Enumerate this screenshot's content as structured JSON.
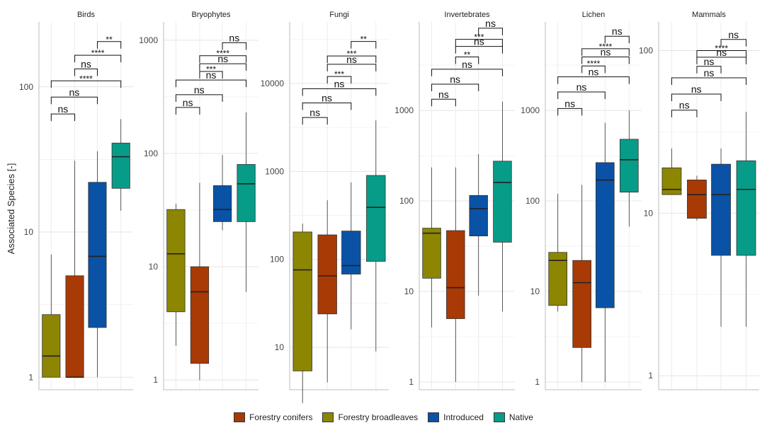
{
  "chart_data": {
    "type": "box",
    "ylabel": "Associated Species [-]",
    "y_scale": "log10",
    "grid": true,
    "legend_placement": "bottom",
    "groups": [
      "Forestry conifers",
      "Forestry broadleaves",
      "Introduced",
      "Native"
    ],
    "group_order_in_panel": [
      "Forestry broadleaves",
      "Forestry conifers",
      "Introduced",
      "Native"
    ],
    "colors": {
      "Forestry conifers": "#a83a06",
      "Forestry broadleaves": "#8c8603",
      "Introduced": "#0a52a5",
      "Native": "#079c87"
    },
    "panels": [
      {
        "title": "Birds",
        "ylim": [
          0.82,
          280
        ],
        "ticks": [
          1,
          10,
          100
        ],
        "boxes": [
          {
            "group": "Forestry broadleaves",
            "min": 1,
            "q1": 1,
            "median": 1.4,
            "q3": 2.7,
            "max": 7
          },
          {
            "group": "Forestry conifers",
            "min": 1,
            "q1": 1,
            "median": 1,
            "q3": 5,
            "max": 31
          },
          {
            "group": "Introduced",
            "min": 1,
            "q1": 2.2,
            "median": 6.8,
            "q3": 22,
            "max": 36
          },
          {
            "group": "Native",
            "min": 14,
            "q1": 20,
            "median": 33,
            "q3": 41,
            "max": 60
          }
        ],
        "brackets": [
          {
            "from": 0,
            "to": 1,
            "label": "ns",
            "y": 65
          },
          {
            "from": 0,
            "to": 2,
            "label": "ns",
            "y": 85
          },
          {
            "from": 0,
            "to": 3,
            "label": "****",
            "y": 110
          },
          {
            "from": 1,
            "to": 2,
            "label": "ns",
            "y": 133
          },
          {
            "from": 1,
            "to": 3,
            "label": "****",
            "y": 165
          },
          {
            "from": 2,
            "to": 3,
            "label": "**",
            "y": 205
          }
        ]
      },
      {
        "title": "Bryophytes",
        "ylim": [
          0.82,
          1450
        ],
        "ticks": [
          1,
          10,
          100,
          1000
        ],
        "boxes": [
          {
            "group": "Forestry broadleaves",
            "min": 2,
            "q1": 4,
            "median": 13,
            "q3": 32,
            "max": 36
          },
          {
            "group": "Forestry conifers",
            "min": 1,
            "q1": 1.4,
            "median": 6,
            "q3": 10,
            "max": 55
          },
          {
            "group": "Introduced",
            "min": 21,
            "q1": 25,
            "median": 32,
            "q3": 52,
            "max": 97
          },
          {
            "group": "Native",
            "min": 6,
            "q1": 25,
            "median": 54,
            "q3": 80,
            "max": 230
          }
        ],
        "brackets": [
          {
            "from": 0,
            "to": 1,
            "label": "ns",
            "y": 255
          },
          {
            "from": 0,
            "to": 2,
            "label": "ns",
            "y": 330
          },
          {
            "from": 0,
            "to": 3,
            "label": "ns",
            "y": 445
          },
          {
            "from": 1,
            "to": 2,
            "label": "***",
            "y": 530
          },
          {
            "from": 1,
            "to": 3,
            "label": "ns",
            "y": 620
          },
          {
            "from": 1,
            "to": 3,
            "label": "****",
            "y": 730
          },
          {
            "from": 2,
            "to": 3,
            "label": "ns",
            "y": 950
          }
        ]
      },
      {
        "title": "Fungi",
        "ylim": [
          3.3,
          50000
        ],
        "ticks": [
          10,
          100,
          1000,
          10000
        ],
        "boxes": [
          {
            "group": "Forestry broadleaves",
            "min": 2,
            "q1": 5.4,
            "median": 76,
            "q3": 205,
            "max": 255
          },
          {
            "group": "Forestry conifers",
            "min": 4,
            "q1": 24,
            "median": 65,
            "q3": 190,
            "max": 470
          },
          {
            "group": "Introduced",
            "min": 16,
            "q1": 68,
            "median": 85,
            "q3": 210,
            "max": 750
          },
          {
            "group": "Native",
            "min": 9,
            "q1": 95,
            "median": 390,
            "q3": 900,
            "max": 3800
          }
        ],
        "brackets": [
          {
            "from": 0,
            "to": 1,
            "label": "ns",
            "y": 4100
          },
          {
            "from": 0,
            "to": 2,
            "label": "ns",
            "y": 6000
          },
          {
            "from": 0,
            "to": 3,
            "label": "ns",
            "y": 8700
          },
          {
            "from": 1,
            "to": 2,
            "label": "***",
            "y": 12000
          },
          {
            "from": 1,
            "to": 3,
            "label": "ns",
            "y": 16500
          },
          {
            "from": 1,
            "to": 3,
            "label": "***",
            "y": 20500
          },
          {
            "from": 2,
            "to": 3,
            "label": "**",
            "y": 30000
          }
        ]
      },
      {
        "title": "Invertebrates",
        "ylim": [
          0.82,
          9500
        ],
        "ticks": [
          1,
          10,
          100,
          1000
        ],
        "boxes": [
          {
            "group": "Forestry broadleaves",
            "min": 4,
            "q1": 14,
            "median": 44,
            "q3": 50,
            "max": 235
          },
          {
            "group": "Forestry conifers",
            "min": 1,
            "q1": 5,
            "median": 11,
            "q3": 47,
            "max": 235
          },
          {
            "group": "Introduced",
            "min": 9,
            "q1": 41,
            "median": 82,
            "q3": 115,
            "max": 330
          },
          {
            "group": "Native",
            "min": 6,
            "q1": 35,
            "median": 160,
            "q3": 275,
            "max": 1250
          }
        ],
        "brackets": [
          {
            "from": 0,
            "to": 1,
            "label": "ns",
            "y": 1330
          },
          {
            "from": 0,
            "to": 2,
            "label": "ns",
            "y": 1950
          },
          {
            "from": 0,
            "to": 3,
            "label": "ns",
            "y": 2850
          },
          {
            "from": 1,
            "to": 2,
            "label": "**",
            "y": 3900
          },
          {
            "from": 1,
            "to": 3,
            "label": "ns",
            "y": 5100
          },
          {
            "from": 1,
            "to": 3,
            "label": "***",
            "y": 6100
          },
          {
            "from": 2,
            "to": 3,
            "label": "ns",
            "y": 8100
          }
        ]
      },
      {
        "title": "Lichen",
        "ylim": [
          0.82,
          9500
        ],
        "ticks": [
          1,
          10,
          100,
          1000
        ],
        "boxes": [
          {
            "group": "Forestry broadleaves",
            "min": 6,
            "q1": 7,
            "median": 22,
            "q3": 27,
            "max": 120
          },
          {
            "group": "Forestry conifers",
            "min": 1,
            "q1": 2.4,
            "median": 12.5,
            "q3": 22,
            "max": 150
          },
          {
            "group": "Introduced",
            "min": 1,
            "q1": 6.6,
            "median": 170,
            "q3": 265,
            "max": 730
          },
          {
            "group": "Native",
            "min": 52,
            "q1": 125,
            "median": 285,
            "q3": 480,
            "max": 1000
          }
        ],
        "brackets": [
          {
            "from": 0,
            "to": 1,
            "label": "ns",
            "y": 1050
          },
          {
            "from": 0,
            "to": 2,
            "label": "ns",
            "y": 1600
          },
          {
            "from": 0,
            "to": 3,
            "label": "ns",
            "y": 2350
          },
          {
            "from": 1,
            "to": 2,
            "label": "****",
            "y": 3100
          },
          {
            "from": 1,
            "to": 3,
            "label": "ns",
            "y": 3900
          },
          {
            "from": 1,
            "to": 3,
            "label": "****",
            "y": 4800
          },
          {
            "from": 2,
            "to": 3,
            "label": "ns",
            "y": 6600
          }
        ]
      },
      {
        "title": "Mammals",
        "ylim": [
          0.82,
          150
        ],
        "ticks": [
          1,
          10,
          100
        ],
        "boxes": [
          {
            "group": "Forestry broadleaves",
            "min": 13,
            "q1": 13,
            "median": 14,
            "q3": 19,
            "max": 25
          },
          {
            "group": "Forestry conifers",
            "min": 9,
            "q1": 9.3,
            "median": 13,
            "q3": 16,
            "max": 17
          },
          {
            "group": "Introduced",
            "min": 2,
            "q1": 5.5,
            "median": 13,
            "q3": 20,
            "max": 25
          },
          {
            "group": "Native",
            "min": 2,
            "q1": 5.5,
            "median": 14,
            "q3": 21,
            "max": 42
          }
        ],
        "brackets": [
          {
            "from": 0,
            "to": 1,
            "label": "ns",
            "y": 43
          },
          {
            "from": 0,
            "to": 2,
            "label": "ns",
            "y": 54
          },
          {
            "from": 0,
            "to": 3,
            "label": "ns",
            "y": 68
          },
          {
            "from": 1,
            "to": 2,
            "label": "ns",
            "y": 80
          },
          {
            "from": 1,
            "to": 3,
            "label": "ns",
            "y": 91
          },
          {
            "from": 1,
            "to": 3,
            "label": "****",
            "y": 100
          },
          {
            "from": 2,
            "to": 3,
            "label": "ns",
            "y": 117
          }
        ]
      }
    ]
  },
  "legend": {
    "items": [
      {
        "label": "Forestry conifers",
        "color": "#a83a06"
      },
      {
        "label": "Forestry broadleaves",
        "color": "#8c8603"
      },
      {
        "label": "Introduced",
        "color": "#0a52a5"
      },
      {
        "label": "Native",
        "color": "#079c87"
      }
    ]
  }
}
